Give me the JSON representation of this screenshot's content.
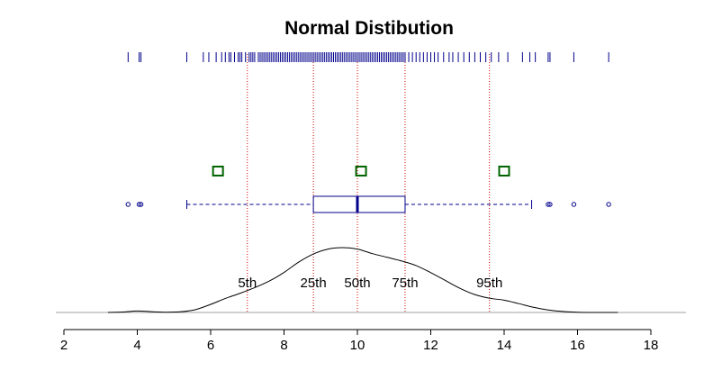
{
  "chart_data": {
    "type": "density",
    "title": "Normal Distibution",
    "xlabel": "",
    "ylabel": "",
    "xlim": [
      2,
      18
    ],
    "x_ticks": [
      2,
      4,
      6,
      8,
      10,
      12,
      14,
      16,
      18
    ],
    "grid": false,
    "rug": [
      3.75,
      4.05,
      4.1,
      5.35,
      5.8,
      5.95,
      6.15,
      6.3,
      6.4,
      6.5,
      6.55,
      6.65,
      6.75,
      6.8,
      6.85,
      6.95,
      7.05,
      7.1,
      7.15,
      7.2,
      7.3,
      7.35,
      7.4,
      7.45,
      7.5,
      7.55,
      7.6,
      7.65,
      7.7,
      7.75,
      7.8,
      7.85,
      7.9,
      7.95,
      8.0,
      8.05,
      8.1,
      8.15,
      8.2,
      8.25,
      8.3,
      8.35,
      8.4,
      8.45,
      8.5,
      8.55,
      8.6,
      8.65,
      8.7,
      8.75,
      8.8,
      8.85,
      8.9,
      8.95,
      9.0,
      9.05,
      9.1,
      9.15,
      9.2,
      9.25,
      9.3,
      9.35,
      9.4,
      9.45,
      9.5,
      9.55,
      9.6,
      9.65,
      9.7,
      9.75,
      9.8,
      9.85,
      9.9,
      9.95,
      10.0,
      10.05,
      10.1,
      10.15,
      10.2,
      10.25,
      10.3,
      10.35,
      10.4,
      10.45,
      10.5,
      10.55,
      10.6,
      10.65,
      10.7,
      10.75,
      10.8,
      10.85,
      10.9,
      10.95,
      11.0,
      11.05,
      11.1,
      11.15,
      11.2,
      11.25,
      11.3,
      11.4,
      11.5,
      11.6,
      11.7,
      11.8,
      11.9,
      12.0,
      12.1,
      12.2,
      12.35,
      12.5,
      12.6,
      12.75,
      12.9,
      13.05,
      13.2,
      13.35,
      13.5,
      13.65,
      13.85,
      14.1,
      14.5,
      14.7,
      14.85,
      15.2,
      15.25,
      15.9,
      16.85
    ],
    "boxplot": {
      "min": 5.35,
      "q1": 8.8,
      "median": 10.0,
      "q3": 11.3,
      "max": 14.75,
      "outliers": [
        3.75,
        4.05,
        4.1,
        15.2,
        15.25,
        15.9,
        16.85
      ]
    },
    "markers": [
      6.2,
      10.1,
      14.0
    ],
    "percentiles": [
      {
        "label": "5th",
        "value": 7.0
      },
      {
        "label": "25th",
        "value": 8.8
      },
      {
        "label": "50th",
        "value": 10.0
      },
      {
        "label": "75th",
        "value": 11.3
      },
      {
        "label": "95th",
        "value": 13.6
      }
    ],
    "density": {
      "x": [
        3.2,
        3.6,
        4.0,
        4.4,
        4.8,
        5.2,
        5.6,
        6.0,
        6.4,
        6.8,
        7.2,
        7.6,
        8.0,
        8.4,
        8.8,
        9.2,
        9.6,
        10.0,
        10.4,
        10.8,
        11.2,
        11.6,
        12.0,
        12.4,
        12.8,
        13.2,
        13.6,
        14.0,
        14.4,
        14.8,
        15.2,
        15.6,
        16.0,
        16.4,
        16.8,
        17.1
      ],
      "y": [
        0.0,
        0.002,
        0.006,
        0.003,
        0.001,
        0.003,
        0.012,
        0.033,
        0.057,
        0.078,
        0.101,
        0.128,
        0.163,
        0.205,
        0.238,
        0.258,
        0.264,
        0.258,
        0.24,
        0.225,
        0.21,
        0.191,
        0.162,
        0.13,
        0.098,
        0.073,
        0.058,
        0.05,
        0.036,
        0.021,
        0.01,
        0.004,
        0.001,
        0.0,
        0.0,
        0.0
      ]
    },
    "colors": {
      "rug": "#00008b",
      "boxplot": "#00008b",
      "markers": "#006400",
      "percentile_lines": "#cd0000",
      "density": "#000000",
      "baseline": "#a0a0a0"
    }
  }
}
